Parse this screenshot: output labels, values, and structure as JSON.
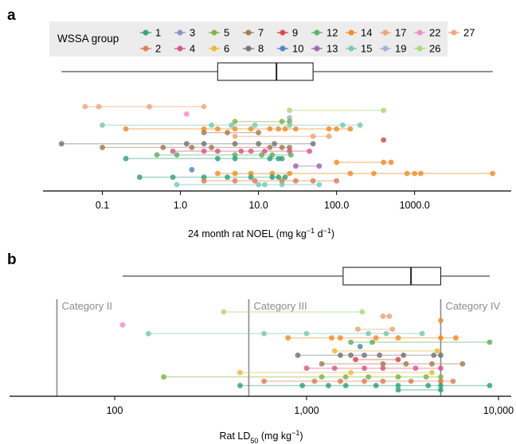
{
  "figure": {
    "panel_a": {
      "label": "a",
      "legend": {
        "title": "WSSA group",
        "entries": [
          {
            "label": "1",
            "color": "#2aa07a"
          },
          {
            "label": "2",
            "color": "#e0794a"
          },
          {
            "label": "3",
            "color": "#8a8fc8"
          },
          {
            "label": "4",
            "color": "#d9508a"
          },
          {
            "label": "5",
            "color": "#7fb03e"
          },
          {
            "label": "6",
            "color": "#e8b92c"
          },
          {
            "label": "7",
            "color": "#a0784a"
          },
          {
            "label": "8",
            "color": "#707070"
          },
          {
            "label": "9",
            "color": "#d84040"
          },
          {
            "label": "10",
            "color": "#4a80c0"
          },
          {
            "label": "12",
            "color": "#58b058"
          },
          {
            "label": "13",
            "color": "#9a60b0"
          },
          {
            "label": "14",
            "color": "#f08a20"
          },
          {
            "label": "15",
            "color": "#70c8b0"
          },
          {
            "label": "17",
            "color": "#f0a070"
          },
          {
            "label": "19",
            "color": "#9ab0d8"
          },
          {
            "label": "22",
            "color": "#f08ac8"
          },
          {
            "label": "26",
            "color": "#a8d870"
          },
          {
            "label": "27",
            "color": "#f4a07a"
          }
        ]
      }
    },
    "panel_b": {
      "label": "b",
      "categories": [
        {
          "label": "Category II",
          "value": 50
        },
        {
          "label": "Category III",
          "value": 500
        },
        {
          "label": "Category IV",
          "value": 5000
        }
      ]
    }
  },
  "chart_data": [
    {
      "type": "scatter",
      "panel": "a",
      "xlabel": "24 month rat NOEL (mg kg−1 d−1)",
      "xlabel_parts": [
        "24 month rat NOEL (mg kg",
        "−1",
        " d",
        "−1",
        ")"
      ],
      "xscale": "log",
      "xlim": [
        0.02,
        15000
      ],
      "xticks": [
        0.1,
        1,
        10,
        100,
        1000
      ],
      "xtick_labels": [
        "0.1",
        "1.0",
        "10.0",
        "100.0",
        "1000.0"
      ],
      "boxplot": {
        "min": 0.03,
        "q1": 3,
        "median": 17,
        "q3": 50,
        "max": 10000
      },
      "ranges": [
        {
          "group": "27",
          "x": [
            0.06,
            0.09,
            0.4,
            2
          ]
        },
        {
          "group": "26",
          "x": [
            25,
            400
          ]
        },
        {
          "group": "22",
          "x": [
            1.2
          ]
        },
        {
          "group": "19",
          "x": [
            25
          ]
        },
        {
          "group": "5",
          "x": [
            20,
            5,
            25
          ]
        },
        {
          "group": "15",
          "x": [
            0.1,
            2.5,
            4.5,
            9,
            25,
            120,
            200
          ]
        },
        {
          "group": "14",
          "x": [
            0.2,
            2,
            3,
            5,
            8,
            14,
            18,
            22,
            30,
            80,
            100,
            150
          ]
        },
        {
          "group": "7",
          "x": [
            2,
            4,
            10
          ]
        },
        {
          "group": "17",
          "x": [
            5,
            50,
            80
          ]
        },
        {
          "group": "9",
          "x": [
            400
          ]
        },
        {
          "group": "8",
          "x": [
            0.03,
            1.2,
            2,
            5,
            10,
            16,
            50
          ]
        },
        {
          "group": "7",
          "x": [
            0.1,
            0.6,
            1.4,
            2.5,
            14,
            20,
            25
          ]
        },
        {
          "group": "4",
          "x": [
            0.8,
            2,
            3,
            6,
            8,
            12,
            25,
            45
          ]
        },
        {
          "group": "12",
          "x": [
            0.5,
            0.9,
            5,
            11,
            15,
            26
          ]
        },
        {
          "group": "1",
          "x": [
            0.2,
            3,
            5,
            14,
            20,
            18
          ]
        },
        {
          "group": "14",
          "x": [
            100,
            400,
            500
          ]
        },
        {
          "group": "13",
          "x": [
            30,
            60
          ]
        },
        {
          "group": "10",
          "x": [
            1.4
          ]
        },
        {
          "group": "14",
          "x": [
            3,
            5,
            8,
            15,
            25,
            150,
            300,
            800,
            1000,
            1200,
            10000
          ]
        },
        {
          "group": "1",
          "x": [
            0.3,
            0.8,
            2,
            4,
            8,
            15,
            18,
            22
          ]
        },
        {
          "group": "2",
          "x": [
            2,
            5,
            9,
            20,
            30,
            50,
            100
          ]
        },
        {
          "group": "15",
          "x": [
            0.9,
            10,
            12,
            20,
            60
          ]
        }
      ]
    },
    {
      "type": "scatter",
      "panel": "b",
      "xlabel": "Rat LD50 (mg kg−1)",
      "xlabel_parts": [
        "Rat LD",
        "50",
        " (mg kg",
        "−1",
        ")"
      ],
      "xscale": "log",
      "xlim": [
        30,
        11000
      ],
      "xticks": [
        100,
        1000,
        10000
      ],
      "xtick_labels": [
        "100",
        "1,000",
        "10,000"
      ],
      "boxplot": {
        "min": 110,
        "q1": 1550,
        "median": 3500,
        "q3": 5000,
        "max": 9000
      },
      "ranges": [
        {
          "group": "26",
          "x": [
            370,
            1950
          ]
        },
        {
          "group": "17",
          "x": [
            2500,
            2700
          ]
        },
        {
          "group": "14",
          "x": [
            5000
          ]
        },
        {
          "group": "22",
          "x": [
            110
          ]
        },
        {
          "group": "17",
          "x": [
            1850,
            2800
          ]
        },
        {
          "group": "15",
          "x": [
            150,
            600,
            1000,
            2100,
            2600,
            4000
          ]
        },
        {
          "group": "14",
          "x": [
            800,
            1350,
            1500,
            2300,
            3000,
            5000,
            6000
          ]
        },
        {
          "group": "12",
          "x": [
            1700,
            2200,
            9000
          ]
        },
        {
          "group": "10",
          "x": [
            1900
          ]
        },
        {
          "group": "6",
          "x": [
            1400,
            4800
          ]
        },
        {
          "group": "8",
          "x": [
            900,
            1500,
            1700,
            2000,
            2400,
            3200,
            4600,
            5000
          ]
        },
        {
          "group": "9",
          "x": [
            1800,
            3000
          ]
        },
        {
          "group": "7",
          "x": [
            1200,
            2500,
            3300,
            4500,
            6500
          ]
        },
        {
          "group": "4",
          "x": [
            1000,
            1400,
            2000,
            2500,
            3700,
            5000
          ]
        },
        {
          "group": "6",
          "x": [
            450,
            1700,
            4500
          ]
        },
        {
          "group": "5",
          "x": [
            180,
            1200,
            1600,
            2100,
            3000,
            4200,
            5000
          ]
        },
        {
          "group": "2",
          "x": [
            600,
            1100,
            1500,
            2000,
            2500,
            3500,
            5000,
            5800
          ]
        },
        {
          "group": "1",
          "x": [
            450,
            950,
            1300,
            1600,
            2300,
            3000,
            4300,
            5000,
            9000
          ]
        },
        {
          "group": "1",
          "x": [
            3000,
            5000
          ]
        }
      ]
    }
  ]
}
